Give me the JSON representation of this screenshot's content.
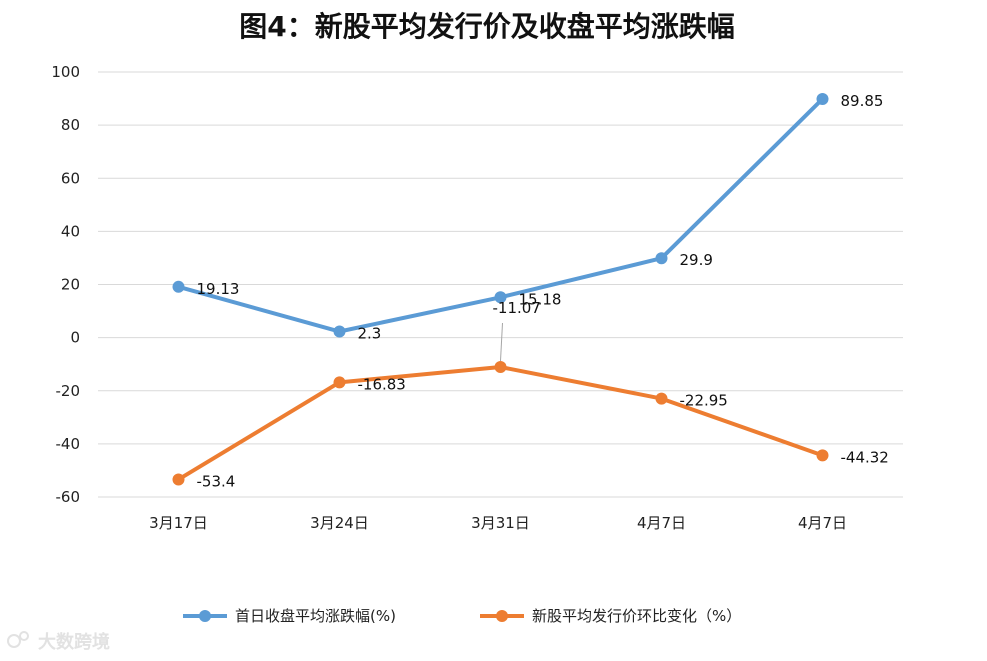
{
  "watermark": "大数跨境",
  "chart_data": {
    "type": "line",
    "title": "图4：新股平均发行价及收盘平均涨跌幅",
    "xlabel": "",
    "ylabel": "",
    "categories": [
      "3月17日",
      "3月24日",
      "3月31日",
      "4月7日",
      "4月7日"
    ],
    "ylim": [
      -60,
      100
    ],
    "yticks": [
      100,
      80,
      60,
      40,
      20,
      0,
      -20,
      -40,
      -60
    ],
    "grid": true,
    "legend_position": "bottom",
    "series": [
      {
        "name": "首日收盘平均涨跌幅(%)",
        "color": "#5b9bd5",
        "values": [
          19.13,
          2.3,
          15.18,
          29.9,
          89.85
        ],
        "labels": [
          "19.13",
          "2.3",
          "15.18",
          "29.9",
          "89.85"
        ]
      },
      {
        "name": "新股平均发行价环比变化（%）",
        "color": "#ed7d31",
        "values": [
          -53.4,
          -16.83,
          -11.07,
          -22.95,
          -44.32
        ],
        "labels": [
          "-53.4",
          "-16.83",
          "-11.07",
          "-22.95",
          "-44.32"
        ]
      }
    ]
  }
}
